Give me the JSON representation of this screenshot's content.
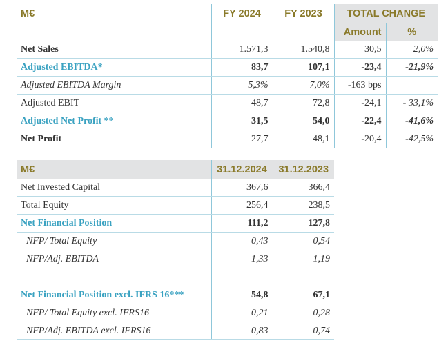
{
  "table1": {
    "header": {
      "unit": "M€",
      "col1": "FY 2024",
      "col2": "FY 2023",
      "col3": "TOTAL CHANGE"
    },
    "subheader": {
      "amount": "Amount",
      "pct": "%"
    },
    "rows": [
      {
        "label": "Net Sales",
        "fy2024": "1.571,3",
        "fy2023": "1.540,8",
        "amount": "30,5",
        "pct": "2,0%"
      },
      {
        "label": "Adjusted EBITDA*",
        "fy2024": "83,7",
        "fy2023": "107,1",
        "amount": "-23,4",
        "pct": "-21,9%"
      },
      {
        "label": "Adjusted EBITDA Margin",
        "fy2024": "5,3%",
        "fy2023": "7,0%",
        "amount": "-163 bps",
        "pct": ""
      },
      {
        "label": "Adjusted EBIT",
        "fy2024": "48,7",
        "fy2023": "72,8",
        "amount": "-24,1",
        "pct": "- 33,1%"
      },
      {
        "label": "Adjusted Net Profit **",
        "fy2024": "31,5",
        "fy2023": "54,0",
        "amount": "-22,4",
        "pct": "-41,6%"
      },
      {
        "label": "Net Profit",
        "fy2024": "27,7",
        "fy2023": "48,1",
        "amount": "-20,4",
        "pct": "-42,5%"
      }
    ]
  },
  "table2": {
    "header": {
      "unit": "M€",
      "col1": "31.12.2024",
      "col2": "31.12.2023"
    },
    "rows": [
      {
        "label": "Net Invested Capital",
        "v2024": "367,6",
        "v2023": "366,4"
      },
      {
        "label": "Total Equity",
        "v2024": "256,4",
        "v2023": "238,5"
      },
      {
        "label": "Net Financial Position",
        "v2024": "111,2",
        "v2023": "127,8"
      },
      {
        "label": "NFP/ Total Equity",
        "v2024": "0,43",
        "v2023": "0,54"
      },
      {
        "label": "NFP/Adj. EBITDA",
        "v2024": "1,33",
        "v2023": "1,19"
      },
      {
        "label": "",
        "v2024": "",
        "v2023": ""
      },
      {
        "label": "Net Financial Position excl. IFRS 16***",
        "v2024": "54,8",
        "v2023": "67,1"
      },
      {
        "label": "NFP/ Total Equity excl. IFRS16",
        "v2024": "0,21",
        "v2023": "0,28"
      },
      {
        "label": "NFP/Adj. EBITDA excl. IFRS16",
        "v2024": "0,83",
        "v2023": "0,74"
      }
    ]
  },
  "colors": {
    "accent_blue": "#3aa2c1",
    "header_gold": "#8a7a2a",
    "header_band": "#e2e3e4",
    "rule": "#b9dbe6"
  }
}
